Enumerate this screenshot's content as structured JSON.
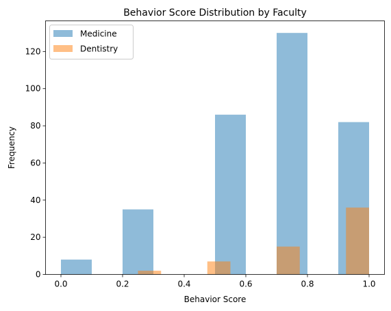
{
  "chart_data": {
    "type": "bar",
    "title": "Behavior Score Distribution by Faculty",
    "xlabel": "Behavior Score",
    "ylabel": "Frequency",
    "xlim": [
      -0.05,
      1.05
    ],
    "ylim": [
      0,
      136.5
    ],
    "xticks": [
      0.0,
      0.2,
      0.4,
      0.6,
      0.8,
      1.0
    ],
    "xtick_labels": [
      "0.0",
      "0.2",
      "0.4",
      "0.6",
      "0.8",
      "1.0"
    ],
    "yticks": [
      0,
      20,
      40,
      60,
      80,
      100,
      120
    ],
    "ytick_labels": [
      "0",
      "20",
      "40",
      "60",
      "80",
      "100",
      "120"
    ],
    "legend_position": "top-left",
    "series": [
      {
        "name": "Medicine",
        "color": "#1f77b4",
        "opacity": 0.5,
        "bins": [
          {
            "x0": 0.0,
            "x1": 0.1,
            "value": 8
          },
          {
            "x0": 0.2,
            "x1": 0.3,
            "value": 35
          },
          {
            "x0": 0.5,
            "x1": 0.6,
            "value": 86
          },
          {
            "x0": 0.7,
            "x1": 0.8,
            "value": 130
          },
          {
            "x0": 0.9,
            "x1": 1.0,
            "value": 82
          }
        ]
      },
      {
        "name": "Dentistry",
        "color": "#ff7f0e",
        "opacity": 0.5,
        "bins": [
          {
            "x0": 0.25,
            "x1": 0.325,
            "value": 2
          },
          {
            "x0": 0.475,
            "x1": 0.55,
            "value": 7
          },
          {
            "x0": 0.7,
            "x1": 0.775,
            "value": 15
          },
          {
            "x0": 0.925,
            "x1": 1.0,
            "value": 36
          }
        ]
      }
    ]
  }
}
